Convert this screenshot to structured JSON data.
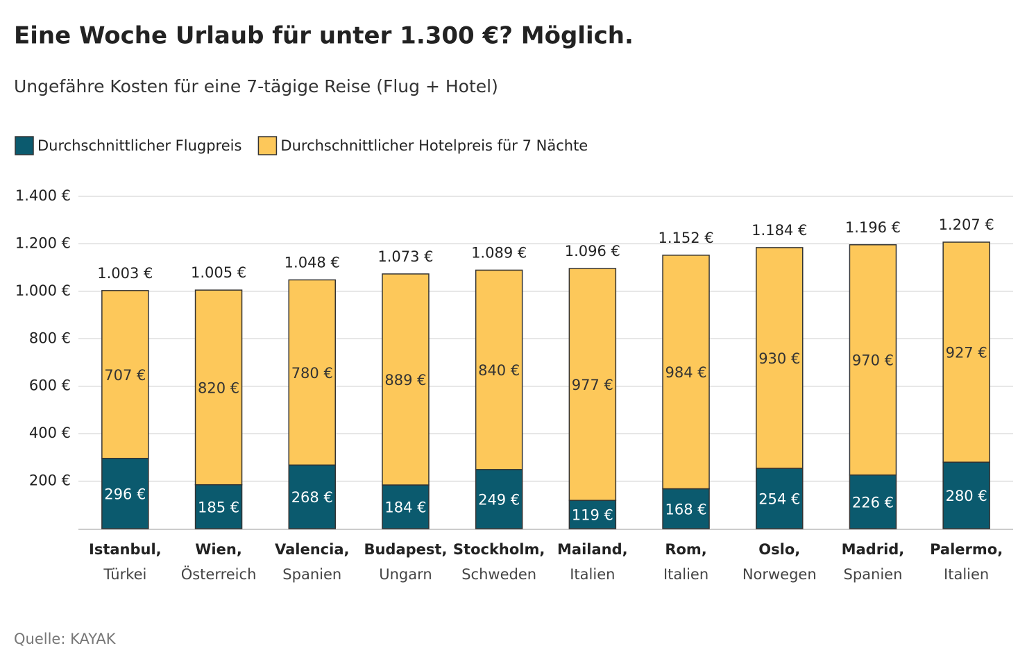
{
  "chart_data": {
    "type": "stacked-bar",
    "title": "Eine Woche Urlaub für unter 1.300 €? Möglich.",
    "subtitle": "Ungefähre Kosten für eine 7-tägige Reise (Flug + Hotel)",
    "source": "Quelle: KAYAK",
    "categories": [
      [
        "Istanbul,",
        "Türkei"
      ],
      [
        "Wien,",
        "Österreich"
      ],
      [
        "Valencia,",
        "Spanien"
      ],
      [
        "Budapest,",
        "Ungarn"
      ],
      [
        "Stockholm,",
        "Schweden"
      ],
      [
        "Mailand,",
        "Italien"
      ],
      [
        "Rom,",
        "Italien"
      ],
      [
        "Oslo,",
        "Norwegen"
      ],
      [
        "Madrid,",
        "Spanien"
      ],
      [
        "Palermo,",
        "Italien"
      ]
    ],
    "series": [
      {
        "name": "Durchschnittlicher Flugpreis",
        "color": "#0b5a6e",
        "label_color": "#ffffff",
        "values": [
          296,
          185,
          268,
          184,
          249,
          119,
          168,
          254,
          226,
          280
        ],
        "value_labels": [
          "296 €",
          "185 €",
          "268 €",
          "184 €",
          "249 €",
          "119 €",
          "168 €",
          "254 €",
          "226 €",
          "280 €"
        ]
      },
      {
        "name": "Durchschnittlicher Hotelpreis für 7 Nächte",
        "color": "#fdc85a",
        "label_color": "#333333",
        "values": [
          707,
          820,
          780,
          889,
          840,
          977,
          984,
          930,
          970,
          927
        ],
        "value_labels": [
          "707 €",
          "820 €",
          "780 €",
          "889 €",
          "840 €",
          "977 €",
          "984 €",
          "930 €",
          "970 €",
          "927 €"
        ]
      }
    ],
    "totals": {
      "values": [
        1003,
        1005,
        1048,
        1073,
        1089,
        1096,
        1152,
        1184,
        1196,
        1207
      ],
      "value_labels": [
        "1.003 €",
        "1.005 €",
        "1.048 €",
        "1.073 €",
        "1.089 €",
        "1.096 €",
        "1.152 €",
        "1.184 €",
        "1.196 €",
        "1.207 €"
      ]
    },
    "ylim": [
      0,
      1400
    ],
    "yticks": [
      {
        "value": 200,
        "label": "200 €"
      },
      {
        "value": 400,
        "label": "400 €"
      },
      {
        "value": 600,
        "label": "600 €"
      },
      {
        "value": 800,
        "label": "800 €"
      },
      {
        "value": 1000,
        "label": "1.000 €"
      },
      {
        "value": 1200,
        "label": "1.200 €"
      },
      {
        "value": 1400,
        "label": "1.400 €"
      }
    ],
    "grid": true
  }
}
